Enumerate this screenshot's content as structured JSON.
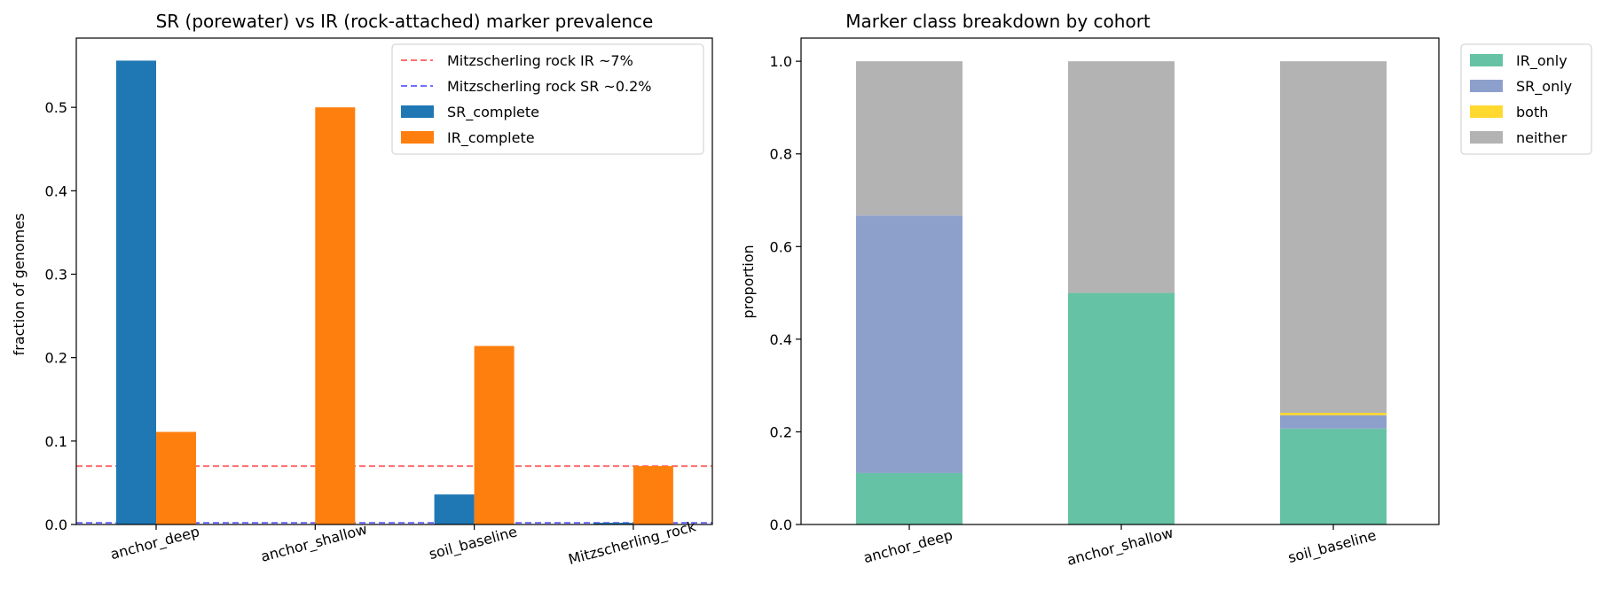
{
  "chart_data": [
    {
      "type": "bar",
      "title": "SR (porewater) vs IR (rock-attached) marker prevalence",
      "xlabel": "",
      "ylabel": "fraction of genomes",
      "categories": [
        "anchor_deep",
        "anchor_shallow",
        "soil_baseline",
        "Mitzscherling_rock"
      ],
      "ylim": [
        0,
        0.583
      ],
      "yticks": [
        0.0,
        0.1,
        0.2,
        0.3,
        0.4,
        0.5
      ],
      "ytick_labels": [
        "0.0",
        "0.1",
        "0.2",
        "0.3",
        "0.4",
        "0.5"
      ],
      "series": [
        {
          "name": "SR_complete",
          "color": "#1f77b4",
          "values": [
            0.556,
            0.0,
            0.036,
            0.002
          ]
        },
        {
          "name": "IR_complete",
          "color": "#ff7f0e",
          "values": [
            0.111,
            0.5,
            0.214,
            0.07
          ]
        }
      ],
      "reference_lines": [
        {
          "name": "Mitzscherling rock IR ~7%",
          "value": 0.07,
          "color": "#ff6f6f",
          "style": "dashed"
        },
        {
          "name": "Mitzscherling rock SR ~0.2%",
          "value": 0.002,
          "color": "#7070ff",
          "style": "dashed"
        }
      ],
      "grid": false,
      "legend_position": "top-right"
    },
    {
      "type": "bar",
      "stacked": true,
      "title": "Marker class breakdown by cohort",
      "xlabel": "",
      "ylabel": "proportion",
      "categories": [
        "anchor_deep",
        "anchor_shallow",
        "soil_baseline"
      ],
      "ylim": [
        0,
        1.05
      ],
      "yticks": [
        0.0,
        0.2,
        0.4,
        0.6,
        0.8,
        1.0
      ],
      "ytick_labels": [
        "0.0",
        "0.2",
        "0.4",
        "0.6",
        "0.8",
        "1.0"
      ],
      "series": [
        {
          "name": "IR_only",
          "color": "#66c2a5",
          "values": [
            0.111,
            0.5,
            0.207
          ]
        },
        {
          "name": "SR_only",
          "color": "#8da0cb",
          "values": [
            0.556,
            0.0,
            0.029
          ]
        },
        {
          "name": "both",
          "color": "#ffd92f",
          "values": [
            0.0,
            0.0,
            0.005
          ]
        },
        {
          "name": "neither",
          "color": "#b3b3b3",
          "values": [
            0.333,
            0.5,
            0.759
          ]
        }
      ],
      "grid": false,
      "legend_position": "outside-right-top"
    }
  ]
}
